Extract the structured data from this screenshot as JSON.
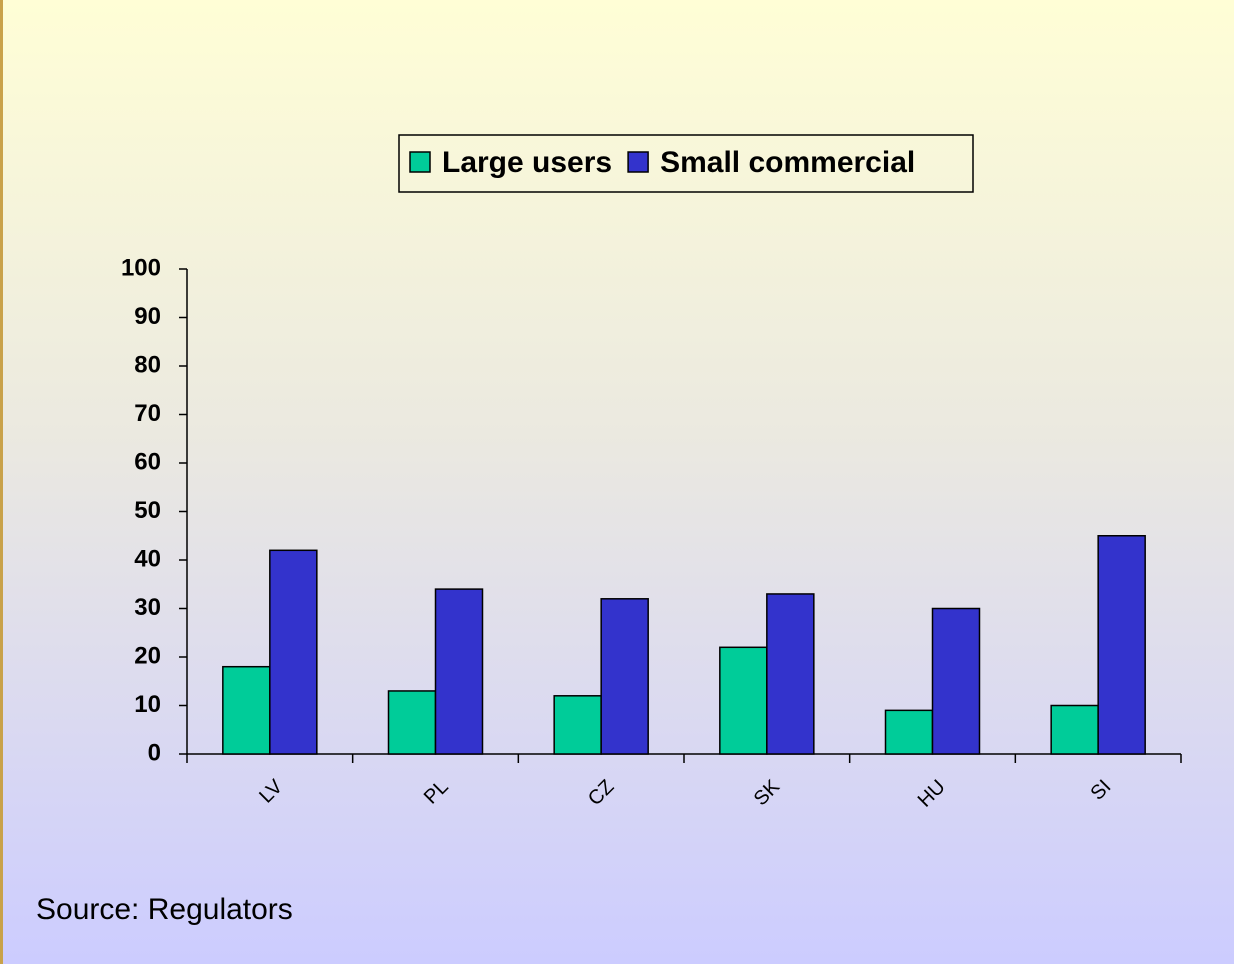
{
  "chart_data": {
    "type": "bar",
    "categories": [
      "LV",
      "PL",
      "CZ",
      "SK",
      "HU",
      "SI"
    ],
    "series": [
      {
        "name": "Large users",
        "color": "#00cc99",
        "values": [
          18,
          13,
          12,
          22,
          9,
          10
        ]
      },
      {
        "name": "Small commercial",
        "color": "#3333cc",
        "values": [
          42,
          34,
          32,
          33,
          30,
          45
        ]
      }
    ],
    "ylim": [
      0,
      100
    ],
    "yticks": [
      0,
      10,
      20,
      30,
      40,
      50,
      60,
      70,
      80,
      90,
      100
    ],
    "legend": "top",
    "source": "Source: Regulators"
  }
}
